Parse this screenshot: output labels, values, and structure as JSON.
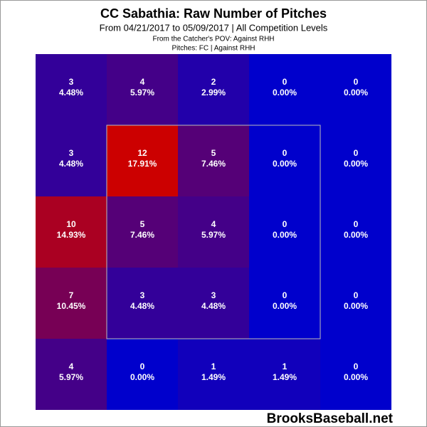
{
  "chart_data": {
    "type": "heatmap",
    "title": "CC Sabathia: Raw Number of Pitches",
    "subtitle": "From 04/21/2017 to 05/09/2017 | All Competition Levels",
    "note_1": "From the Catcher's POV:   Against RHH",
    "note_2": "Pitches:  FC  |  Against RHH",
    "watermark": "BrooksBaseball.net",
    "values": [
      [
        3,
        4,
        2,
        0,
        0
      ],
      [
        3,
        12,
        5,
        0,
        0
      ],
      [
        10,
        5,
        4,
        0,
        0
      ],
      [
        7,
        3,
        3,
        0,
        0
      ],
      [
        4,
        0,
        1,
        1,
        0
      ]
    ],
    "shares": [
      [
        4.48,
        5.97,
        2.99,
        0,
        0
      ],
      [
        4.48,
        17.91,
        7.46,
        0,
        0
      ],
      [
        14.93,
        7.46,
        5.97,
        0,
        0
      ],
      [
        10.45,
        4.48,
        4.48,
        0,
        0
      ],
      [
        5.97,
        0,
        1.49,
        1.49,
        0
      ]
    ],
    "share_labels": [
      [
        "4.48%",
        "5.97%",
        "2.99%",
        "0.00%",
        "0.00%"
      ],
      [
        "4.48%",
        "17.91%",
        "7.46%",
        "0.00%",
        "0.00%"
      ],
      [
        "14.93%",
        "7.46%",
        "5.97%",
        "0.00%",
        "0.00%"
      ],
      [
        "10.45%",
        "4.48%",
        "4.48%",
        "0.00%",
        "0.00%"
      ],
      [
        "5.97%",
        "0.00%",
        "1.49%",
        "1.49%",
        "0.00%"
      ]
    ],
    "zlim": [
      0,
      12
    ],
    "color_low": "#0000cc",
    "color_high": "#cc0000"
  }
}
